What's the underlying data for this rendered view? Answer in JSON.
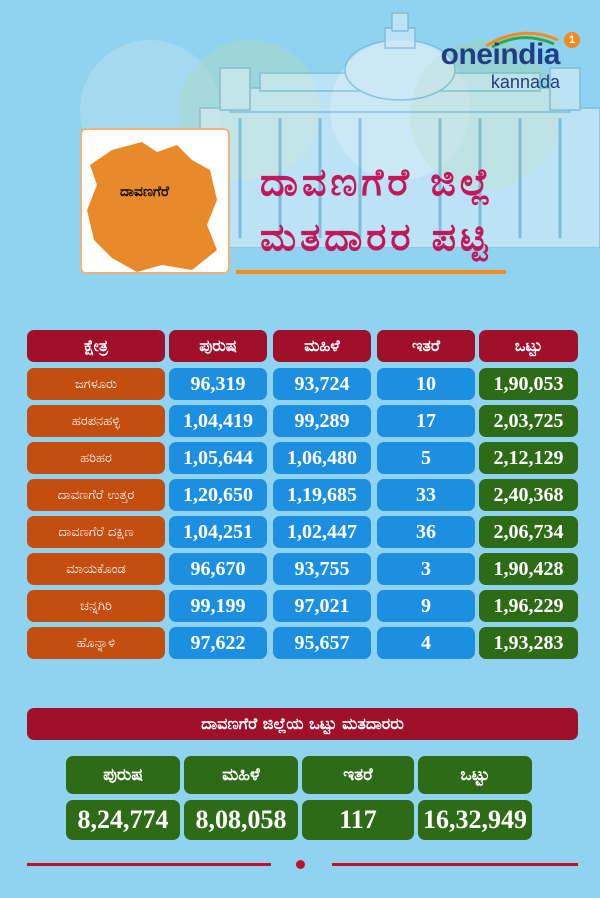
{
  "logo": {
    "main": "oneindia",
    "badge": "1",
    "sub": "kannada"
  },
  "map": {
    "label": "ದಾವಣಗೆರೆ"
  },
  "title": {
    "line1": "ದಾವಣಗೆರೆ ಜಿಲ್ಲೆ",
    "line2": "ಮತದಾರರ ಪಟ್ಟಿ"
  },
  "table": {
    "headers": [
      "ಕ್ಷೇತ್ರ",
      "ಪುರುಷ",
      "ಮಹಿಳೆ",
      "ಇತರೆ",
      "ಒಟ್ಟು"
    ],
    "rows": [
      {
        "name": "ಜಗಳೂರು",
        "male": "96,319",
        "female": "93,724",
        "other": "10",
        "total": "1,90,053"
      },
      {
        "name": "ಹರಪನಹಳ್ಳಿ",
        "male": "1,04,419",
        "female": "99,289",
        "other": "17",
        "total": "2,03,725"
      },
      {
        "name": "ಹರಿಹರ",
        "male": "1,05,644",
        "female": "1,06,480",
        "other": "5",
        "total": "2,12,129"
      },
      {
        "name": "ದಾವಣಗೆರೆ ಉತ್ತರ",
        "male": "1,20,650",
        "female": "1,19,685",
        "other": "33",
        "total": "2,40,368"
      },
      {
        "name": "ದಾವಣಗೆರೆ ದಕ್ಷಿಣ",
        "male": "1,04,251",
        "female": "1,02,447",
        "other": "36",
        "total": "2,06,734"
      },
      {
        "name": "ಮಾಯಕೊಂಡ",
        "male": "96,670",
        "female": "93,755",
        "other": "3",
        "total": "1,90,428"
      },
      {
        "name": "ಚನ್ನಗಿರಿ",
        "male": "99,199",
        "female": "97,021",
        "other": "9",
        "total": "1,96,229"
      },
      {
        "name": "ಹೊನ್ನಾಳಿ",
        "male": "97,622",
        "female": "95,657",
        "other": "4",
        "total": "1,93,283"
      }
    ]
  },
  "summary": {
    "banner": "ದಾವಣಗೆರೆ ಜಿಲ್ಲೆಯ ಒಟ್ಟು ಮತದಾರರು",
    "labels": [
      "ಪುರುಷ",
      "ಮಹಿಳೆ",
      "ಇತರೆ",
      "ಒಟ್ಟು"
    ],
    "values": [
      "8,24,774",
      "8,08,058",
      "117",
      "16,32,949"
    ]
  },
  "colors": {
    "background": "#8fd3f0",
    "header": "#a0102a",
    "constituency": "#c44d10",
    "count": "#1d8fe0",
    "total": "#2e6b16",
    "title": "#c2185b"
  },
  "icons": {
    "logo": "oneindia-logo",
    "map": "district-map-icon",
    "building": "vidhana-soudha-illustration"
  }
}
